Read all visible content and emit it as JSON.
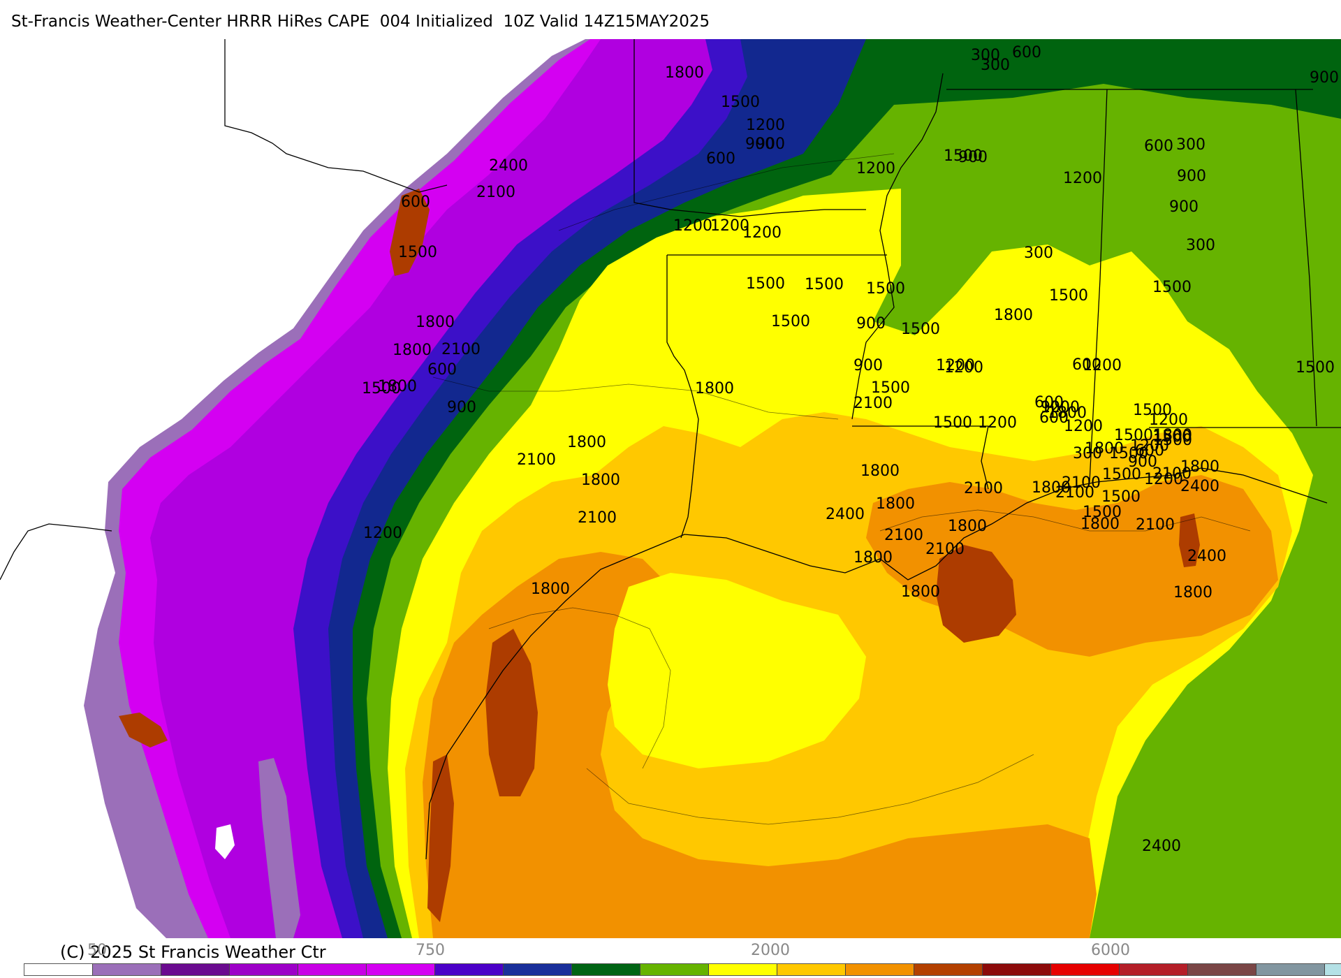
{
  "header": {
    "title": "St-Francis Weather-Center HRRR HiRes CAPE  004 Initialized  10Z Valid 14Z15MAY2025"
  },
  "legend": {
    "copyright": "(C) 2025 St Francis Weather Ctr",
    "ticks": [
      "50",
      "750",
      "2000",
      "6000"
    ],
    "colors": [
      "#ffffff",
      "#9b6fb9",
      "#6a0a8f",
      "#9d00c8",
      "#c800e6",
      "#d400f2",
      "#4b00c8",
      "#1a2f9a",
      "#006414",
      "#66b300",
      "#ffff00",
      "#ffc800",
      "#f29100",
      "#b34000",
      "#8c0a0a",
      "#e60000",
      "#b41e28",
      "#7a4646",
      "#8296a0",
      "#b4e1e6"
    ]
  },
  "colors": {
    "white": "#ffffff",
    "light_purple": "#9b6fb9",
    "magenta": "#d400f2",
    "violet": "#b000e0",
    "blue": "#3c10c8",
    "navy": "#12288f",
    "dark_green": "#00640f",
    "green": "#66b300",
    "yellow": "#ffff00",
    "gold": "#ffc800",
    "orange": "#f29100",
    "brown": "#ad3c00"
  },
  "contour_labels": [
    {
      "text": "1800"
    },
    {
      "text": "1500"
    },
    {
      "text": "1200"
    },
    {
      "text": "900"
    },
    {
      "text": "600"
    },
    {
      "text": "300"
    },
    {
      "text": "600"
    },
    {
      "text": "2400"
    },
    {
      "text": "2100"
    },
    {
      "text": "900"
    },
    {
      "text": "1200"
    },
    {
      "text": "1500"
    },
    {
      "text": "1200"
    },
    {
      "text": "1200"
    },
    {
      "text": "900"
    },
    {
      "text": "1800"
    },
    {
      "text": "1200"
    },
    {
      "text": "900"
    },
    {
      "text": "300"
    },
    {
      "text": "1500"
    },
    {
      "text": "600"
    },
    {
      "text": "600"
    },
    {
      "text": "1200"
    },
    {
      "text": "900"
    },
    {
      "text": "300"
    },
    {
      "text": "1500"
    },
    {
      "text": "900"
    },
    {
      "text": "1200"
    },
    {
      "text": "900"
    },
    {
      "text": "1800"
    },
    {
      "text": "1200"
    },
    {
      "text": "600"
    },
    {
      "text": "1500"
    },
    {
      "text": "300"
    },
    {
      "text": "600"
    },
    {
      "text": "300"
    },
    {
      "text": "900"
    },
    {
      "text": "1500"
    },
    {
      "text": "1500"
    },
    {
      "text": "1500"
    },
    {
      "text": "1500"
    },
    {
      "text": "1500"
    },
    {
      "text": "1500"
    },
    {
      "text": "1500"
    },
    {
      "text": "1500"
    },
    {
      "text": "1800"
    },
    {
      "text": "1500"
    },
    {
      "text": "1800"
    },
    {
      "text": "2100"
    },
    {
      "text": "1800"
    },
    {
      "text": "1500"
    },
    {
      "text": "600"
    },
    {
      "text": "900"
    },
    {
      "text": "1200"
    },
    {
      "text": "2400"
    },
    {
      "text": "2100"
    },
    {
      "text": "1800"
    },
    {
      "text": "2400"
    },
    {
      "text": "1800"
    },
    {
      "text": "2100"
    },
    {
      "text": "1800"
    },
    {
      "text": "2100"
    },
    {
      "text": "1800"
    },
    {
      "text": "1800"
    },
    {
      "text": "1800"
    },
    {
      "text": "1800"
    },
    {
      "text": "1800"
    },
    {
      "text": "1800"
    },
    {
      "text": "2400"
    },
    {
      "text": "2100"
    },
    {
      "text": "1800"
    },
    {
      "text": "2100"
    },
    {
      "text": "2100"
    },
    {
      "text": "1800"
    },
    {
      "text": "1800"
    },
    {
      "text": "2100"
    },
    {
      "text": "2100"
    },
    {
      "text": "2400"
    },
    {
      "text": "1500"
    },
    {
      "text": "1500"
    },
    {
      "text": "1200"
    },
    {
      "text": "1200"
    },
    {
      "text": "900"
    },
    {
      "text": "1200"
    },
    {
      "text": "600"
    },
    {
      "text": "1200"
    },
    {
      "text": "1500"
    },
    {
      "text": "1200"
    },
    {
      "text": "1500"
    },
    {
      "text": "1500"
    },
    {
      "text": "1200"
    },
    {
      "text": "1800"
    },
    {
      "text": "600"
    },
    {
      "text": "300"
    },
    {
      "text": "900"
    },
    {
      "text": "1200"
    },
    {
      "text": "1500"
    },
    {
      "text": "1500"
    },
    {
      "text": "1800"
    },
    {
      "text": "1800"
    },
    {
      "text": "2100"
    },
    {
      "text": "2100"
    }
  ]
}
